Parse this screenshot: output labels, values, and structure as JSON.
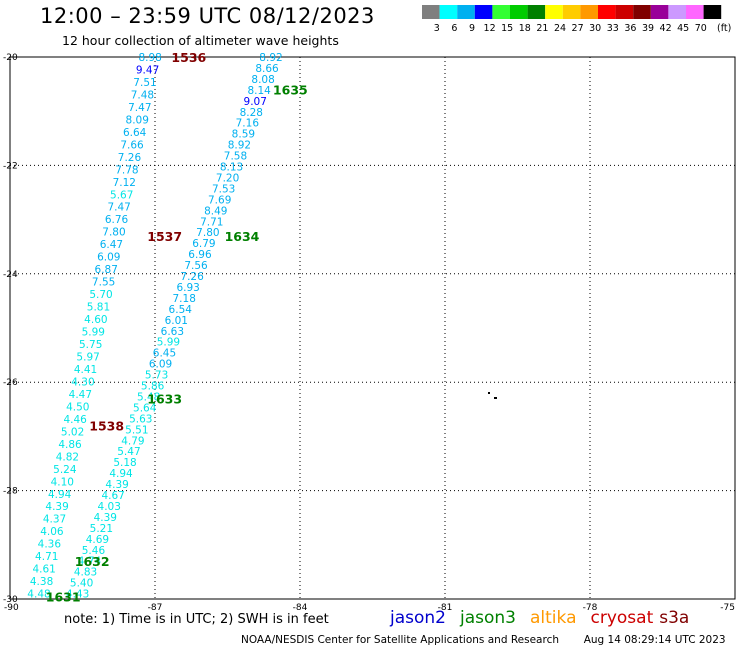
{
  "header": {
    "title": "12:00 – 23:59 UTC 08/12/2023",
    "subtitle": "12 hour collection of altimeter wave heights"
  },
  "legend": {
    "unit": "(ft)",
    "bins": [
      {
        "label": "3",
        "color": "#7f7f7f"
      },
      {
        "label": "6",
        "color": "#00ffff"
      },
      {
        "label": "9",
        "color": "#00b0f0"
      },
      {
        "label": "12",
        "color": "#0000ff"
      },
      {
        "label": "15",
        "color": "#33ff33"
      },
      {
        "label": "18",
        "color": "#00cc00"
      },
      {
        "label": "21",
        "color": "#008000"
      },
      {
        "label": "24",
        "color": "#ffff00"
      },
      {
        "label": "27",
        "color": "#ffcc00"
      },
      {
        "label": "30",
        "color": "#ff9900"
      },
      {
        "label": "33",
        "color": "#ff0000"
      },
      {
        "label": "36",
        "color": "#cc0000"
      },
      {
        "label": "39",
        "color": "#800000"
      },
      {
        "label": "42",
        "color": "#990099"
      },
      {
        "label": "45",
        "color": "#cc99ff"
      },
      {
        "label": "70",
        "color": "#ff66ff"
      },
      {
        "label": "",
        "color": "#000000"
      }
    ]
  },
  "axes": {
    "lon_ticks": [
      "-90",
      "-87",
      "-84",
      "-81",
      "-78",
      "-75"
    ],
    "lat_ticks": [
      "-20",
      "-22",
      "-24",
      "-26",
      "-28",
      "-30"
    ]
  },
  "track_labels": [
    {
      "text": "1536",
      "color": "#800000",
      "lon": -86.3,
      "lat": -20.0
    },
    {
      "text": "1537",
      "color": "#800000",
      "lon": -86.8,
      "lat": -23.3
    },
    {
      "text": "1538",
      "color": "#800000",
      "lon": -88.0,
      "lat": -26.8
    },
    {
      "text": "1635",
      "color": "#008000",
      "lon": -84.2,
      "lat": -20.6
    },
    {
      "text": "1634",
      "color": "#008000",
      "lon": -85.2,
      "lat": -23.3
    },
    {
      "text": "1633",
      "color": "#008000",
      "lon": -86.8,
      "lat": -26.3
    },
    {
      "text": "1632",
      "color": "#008000",
      "lon": -88.3,
      "lat": -29.3
    },
    {
      "text": "1631",
      "color": "#008000",
      "lon": -88.9,
      "lat": -29.95
    }
  ],
  "tracks": [
    {
      "name": "",
      "lon_start": -87.1,
      "lat_start": -20.0,
      "lon_end": -89.4,
      "lat_end": -29.9,
      "values": [
        "8.98",
        "9.47",
        "7.51",
        "7.48",
        "7.47",
        "8.09",
        "6.64",
        "7.66",
        "7.26",
        "7.78",
        "7.12",
        "5.67",
        "7.47",
        "6.76",
        "7.80",
        "6.47",
        "6.09",
        "6.87",
        "7.55",
        "5.70",
        "5.81",
        "4.60",
        "5.99",
        "5.75",
        "5.97",
        "4.41",
        "4.30",
        "4.47",
        "4.50",
        "4.46",
        "5.02",
        "4.86",
        "4.82",
        "5.24",
        "4.10",
        "4.94",
        "4.39",
        "4.37",
        "4.06",
        "4.36",
        "4.71",
        "4.61",
        "4.38",
        "4.48"
      ]
    },
    {
      "name": "",
      "lon_start": -84.6,
      "lat_start": -20.0,
      "lon_end": -88.6,
      "lat_end": -29.9,
      "values": [
        "8.92",
        "8.66",
        "8.08",
        "8.14",
        "9.07",
        "8.28",
        "7.16",
        "8.59",
        "8.92",
        "7.58",
        "8.13",
        "7.20",
        "7.53",
        "7.69",
        "8.49",
        "7.71",
        "7.80",
        "6.79",
        "6.96",
        "7.56",
        "7.26",
        "6.93",
        "7.18",
        "6.54",
        "6.01",
        "6.63",
        "5.99",
        "6.45",
        "6.09",
        "5.73",
        "5.86",
        "5.48",
        "5.64",
        "5.63",
        "5.51",
        "4.79",
        "5.47",
        "5.18",
        "4.94",
        "4.39",
        "4.67",
        "4.03",
        "4.39",
        "5.21",
        "4.69",
        "5.46",
        "4.74",
        "4.83",
        "5.40",
        "4.43"
      ]
    }
  ],
  "footer": {
    "note": "note:  1) Time is in UTC;  2) SWH is in feet",
    "satellites": [
      {
        "name": "jason2",
        "color": "#0000cc"
      },
      {
        "name": "jason3",
        "color": "#008000"
      },
      {
        "name": "altika",
        "color": "#ff9900"
      },
      {
        "name": "cryosat",
        "color": "#cc0000"
      },
      {
        "name": "s3a",
        "color": "#800000"
      }
    ],
    "credits": "NOAA/NESDIS Center for Satellite Applications and Research",
    "timestamp": "Aug 14 08:29:14 UTC 2023"
  }
}
